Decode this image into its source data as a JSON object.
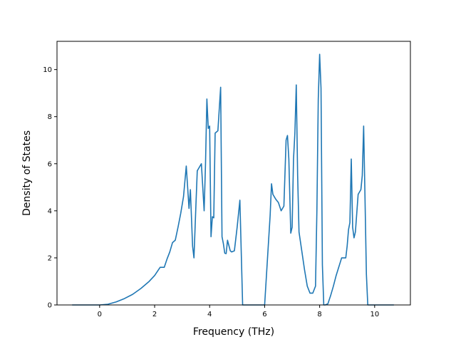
{
  "chart_data": {
    "type": "line",
    "title": "",
    "xlabel": "Frequency (THz)",
    "ylabel": "Density of States",
    "xlim": [
      -1.55,
      11.3
    ],
    "ylim": [
      0,
      11.2
    ],
    "xticks": [
      0,
      2,
      4,
      6,
      8,
      10
    ],
    "yticks": [
      0,
      2,
      4,
      6,
      8,
      10
    ],
    "grid": false,
    "legend": "none",
    "series": [
      {
        "color": "#1f77b4",
        "x": [
          -1.0,
          -0.5,
          0.0,
          0.3,
          0.6,
          0.9,
          1.2,
          1.5,
          1.8,
          2.0,
          2.2,
          2.35,
          2.45,
          2.55,
          2.65,
          2.75,
          2.85,
          2.95,
          3.05,
          3.15,
          3.25,
          3.3,
          3.38,
          3.43,
          3.5,
          3.55,
          3.6,
          3.7,
          3.8,
          3.85,
          3.9,
          3.95,
          4.0,
          4.05,
          4.1,
          4.15,
          4.2,
          4.3,
          4.4,
          4.45,
          4.5,
          4.55,
          4.6,
          4.65,
          4.75,
          4.8,
          4.9,
          5.0,
          5.1,
          5.2,
          5.28,
          5.32,
          5.4,
          6.0,
          6.2,
          6.25,
          6.3,
          6.4,
          6.5,
          6.6,
          6.7,
          6.78,
          6.83,
          6.88,
          6.95,
          7.0,
          7.05,
          7.1,
          7.15,
          7.2,
          7.25,
          7.35,
          7.45,
          7.55,
          7.65,
          7.75,
          7.85,
          7.9,
          7.95,
          8.0,
          8.05,
          8.1,
          8.15,
          8.2,
          8.3,
          8.4,
          8.5,
          8.6,
          8.8,
          8.95,
          9.0,
          9.05,
          9.1,
          9.15,
          9.2,
          9.25,
          9.3,
          9.4,
          9.5,
          9.55,
          9.6,
          9.65,
          9.7,
          9.75,
          10.0,
          10.7
        ],
        "y": [
          0.0,
          0.0,
          0.0,
          0.03,
          0.13,
          0.27,
          0.45,
          0.7,
          1.0,
          1.25,
          1.6,
          1.6,
          1.95,
          2.25,
          2.65,
          2.75,
          3.3,
          3.9,
          4.6,
          5.9,
          4.1,
          4.9,
          2.5,
          2.0,
          4.2,
          5.7,
          5.8,
          6.0,
          4.0,
          6.0,
          8.75,
          7.5,
          7.6,
          2.9,
          3.75,
          3.7,
          7.3,
          7.4,
          9.25,
          2.9,
          2.6,
          2.2,
          2.18,
          2.75,
          2.3,
          2.25,
          2.3,
          3.3,
          4.45,
          0.0,
          0.0,
          0.0,
          0.0,
          0.0,
          3.8,
          5.15,
          4.7,
          4.5,
          4.35,
          4.0,
          4.2,
          7.0,
          7.2,
          6.2,
          3.05,
          3.3,
          6.2,
          7.3,
          9.35,
          5.5,
          3.1,
          2.3,
          1.5,
          0.8,
          0.5,
          0.5,
          0.8,
          4.0,
          8.75,
          10.65,
          9.2,
          1.7,
          0.0,
          0.0,
          0.05,
          0.4,
          0.8,
          1.25,
          2.0,
          2.0,
          2.5,
          3.2,
          3.5,
          6.2,
          3.3,
          2.85,
          3.1,
          4.7,
          4.9,
          5.5,
          7.6,
          4.5,
          1.3,
          0.0,
          0.0,
          0.0
        ]
      }
    ]
  }
}
